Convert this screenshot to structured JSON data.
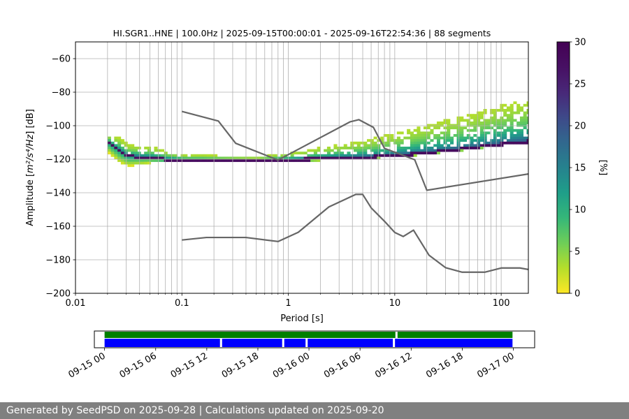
{
  "chart_data": {
    "type": "heatmap",
    "title": "HI.SGR1..HNE | 100.0Hz | 2025-09-15T00:00:01 - 2025-09-16T22:54:36 | 88 segments",
    "xlabel": "Period [s]",
    "ylabel_main": "Amplitude [",
    "ylabel_unit": "m²/s⁴/Hz",
    "ylabel_end": "] [dB]",
    "xscale": "log",
    "xlim": [
      0.01,
      180
    ],
    "ylim": [
      -200,
      -50
    ],
    "xticks": [
      {
        "value": 0.01,
        "label": "0.01"
      },
      {
        "value": 0.1,
        "label": "0.1"
      },
      {
        "value": 1,
        "label": "1"
      },
      {
        "value": 10,
        "label": "10"
      },
      {
        "value": 100,
        "label": "100"
      }
    ],
    "yticks": [
      {
        "value": -60,
        "label": "−60"
      },
      {
        "value": -80,
        "label": "−80"
      },
      {
        "value": -100,
        "label": "−100"
      },
      {
        "value": -120,
        "label": "−120"
      },
      {
        "value": -140,
        "label": "−140"
      },
      {
        "value": -160,
        "label": "−160"
      },
      {
        "value": -180,
        "label": "−180"
      },
      {
        "value": -200,
        "label": "−200"
      }
    ],
    "grid": true,
    "colorbar": {
      "label": "[%]",
      "range": [
        0,
        30
      ],
      "colormap": "viridis_r",
      "ticks": [
        {
          "value": 0,
          "label": "0"
        },
        {
          "value": 5,
          "label": "5"
        },
        {
          "value": 10,
          "label": "10"
        },
        {
          "value": 15,
          "label": "15"
        },
        {
          "value": 20,
          "label": "20"
        },
        {
          "value": 25,
          "label": "25"
        },
        {
          "value": 30,
          "label": "30"
        }
      ]
    },
    "lines": [
      {
        "color": "#666666",
        "points": [
          [
            0.1,
            -91.5
          ],
          [
            0.22,
            -97.2
          ],
          [
            0.32,
            -110.5
          ],
          [
            0.8,
            -120.5
          ],
          [
            3.8,
            -97.7
          ],
          [
            4.6,
            -96.4
          ],
          [
            6.3,
            -101
          ],
          [
            8,
            -113.5
          ],
          [
            15.4,
            -120.3
          ],
          [
            20,
            -138.5
          ],
          [
            180,
            -128.8
          ]
        ]
      },
      {
        "color": "#666666",
        "points": [
          [
            0.1,
            -168.2
          ],
          [
            0.17,
            -166.7
          ],
          [
            0.4,
            -166.7
          ],
          [
            0.8,
            -169.1
          ],
          [
            1.24,
            -163.6
          ],
          [
            2.4,
            -148.5
          ],
          [
            4.3,
            -141
          ],
          [
            5,
            -141
          ],
          [
            6,
            -149
          ],
          [
            8,
            -157
          ],
          [
            10,
            -163.7
          ],
          [
            12,
            -166.1
          ],
          [
            15,
            -162.3
          ],
          [
            21,
            -177.3
          ],
          [
            30,
            -184.7
          ],
          [
            43,
            -187.4
          ],
          [
            70,
            -187.4
          ],
          [
            100,
            -184.9
          ],
          [
            150,
            -184.9
          ],
          [
            180,
            -185.8
          ]
        ]
      }
    ],
    "psd_modes": [
      {
        "x": [
          0.02,
          0.03,
          0.05,
          0.07,
          0.1,
          0.15,
          0.2,
          0.3,
          0.5,
          0.7,
          1,
          1.5,
          2,
          3,
          5,
          7,
          10,
          15,
          20,
          30,
          50,
          70,
          100,
          150,
          180
        ],
        "y": [
          -111.5,
          -119,
          -120,
          -121,
          -121.5,
          -121.6,
          -121.6,
          -121.6,
          -121.6,
          -121.5,
          -121.2,
          -120.7,
          -120.3,
          -119.9,
          -119.6,
          -119.1,
          -118.5,
          -117.6,
          -116.8,
          -115.6,
          -114,
          -112.8,
          -111.7,
          -110.6,
          -110.1
        ]
      }
    ],
    "psd_spread": [
      {
        "x": [
          0.02,
          0.025,
          0.03,
          0.04,
          0.05,
          0.07,
          0.1,
          0.15,
          0.2,
          0.3,
          0.5,
          0.7,
          1,
          1.5,
          2,
          3,
          5,
          7,
          10,
          15,
          20,
          30,
          50,
          70,
          100,
          150,
          180
        ],
        "lo": [
          -117,
          -123,
          -125,
          -124,
          -123,
          -122.5,
          -122.5,
          -122.5,
          -122.5,
          -122.5,
          -122.5,
          -122.4,
          -122.2,
          -121.8,
          -121.4,
          -121,
          -120.6,
          -120,
          -119.4,
          -118.5,
          -117.7,
          -116.6,
          -115,
          -113.8,
          -112.6,
          -111.6,
          -111.2
        ],
        "hi": [
          -106,
          -108,
          -112,
          -113,
          -113,
          -116,
          -118,
          -118,
          -118.5,
          -119,
          -119.5,
          -118,
          -117,
          -115,
          -113.5,
          -112,
          -109.5,
          -107,
          -105,
          -102,
          -100,
          -97,
          -94,
          -91,
          -88,
          -86,
          -85
        ]
      }
    ]
  },
  "timeline": {
    "ticks": [
      {
        "t": 0,
        "label": "09-15 00"
      },
      {
        "t": 6,
        "label": "09-15 06"
      },
      {
        "t": 12,
        "label": "09-15 12"
      },
      {
        "t": 18,
        "label": "09-15 18"
      },
      {
        "t": 24,
        "label": "09-16 00"
      },
      {
        "t": 30,
        "label": "09-16 06"
      },
      {
        "t": 36,
        "label": "09-16 12"
      },
      {
        "t": 42,
        "label": "09-16 18"
      },
      {
        "t": 48,
        "label": "09-17 00"
      }
    ],
    "range": [
      -1.2,
      50.5
    ],
    "green_segments": [
      [
        0,
        34.15
      ],
      [
        34.4,
        47.9
      ]
    ],
    "blue_segments": [
      [
        0,
        13.55
      ],
      [
        13.8,
        20.85
      ],
      [
        21.1,
        23.6
      ],
      [
        23.85,
        33.85
      ],
      [
        34.1,
        47.9
      ]
    ],
    "green_color": "#007f00",
    "blue_color": "#0000ff"
  },
  "footer": {
    "text": "Generated by SeedPSD on 2025-09-28 | Calculations updated on 2025-09-20"
  }
}
